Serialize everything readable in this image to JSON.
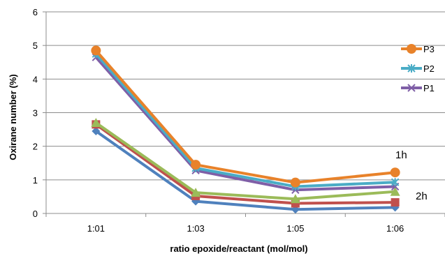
{
  "chart_data": {
    "type": "line",
    "categories": [
      "1:01",
      "1:03",
      "1:05",
      "1:06"
    ],
    "xlabel": "ratio epoxide/reactant (mol/mol)",
    "ylabel": "Oxirane number (%)",
    "ylim": [
      0,
      6
    ],
    "yticks": [
      "0",
      "1",
      "2",
      "3",
      "4",
      "5",
      "6"
    ],
    "grid": "horizontal",
    "legend_position": "right",
    "series": [
      {
        "name": "P3",
        "values": [
          4.85,
          1.45,
          0.92,
          1.22
        ],
        "color": "#e8822a",
        "marker": "circle",
        "group": "1h"
      },
      {
        "name": "P2",
        "values": [
          4.75,
          1.35,
          0.8,
          0.93
        ],
        "color": "#4aacc6",
        "marker": "asterisk",
        "group": "1h"
      },
      {
        "name": "P1",
        "values": [
          4.65,
          1.28,
          0.7,
          0.8
        ],
        "color": "#7f5fa7",
        "marker": "x",
        "group": "1h"
      },
      {
        "name": "",
        "values": [
          2.7,
          0.62,
          0.43,
          0.65
        ],
        "color": "#9bbb59",
        "marker": "triangle",
        "group": "2h"
      },
      {
        "name": "",
        "values": [
          2.65,
          0.52,
          0.3,
          0.33
        ],
        "color": "#c0504d",
        "marker": "square",
        "group": "2h"
      },
      {
        "name": "",
        "values": [
          2.45,
          0.36,
          0.12,
          0.18
        ],
        "color": "#4f81bd",
        "marker": "diamond",
        "group": "2h"
      }
    ],
    "annotations": [
      "1h",
      "2h"
    ]
  }
}
